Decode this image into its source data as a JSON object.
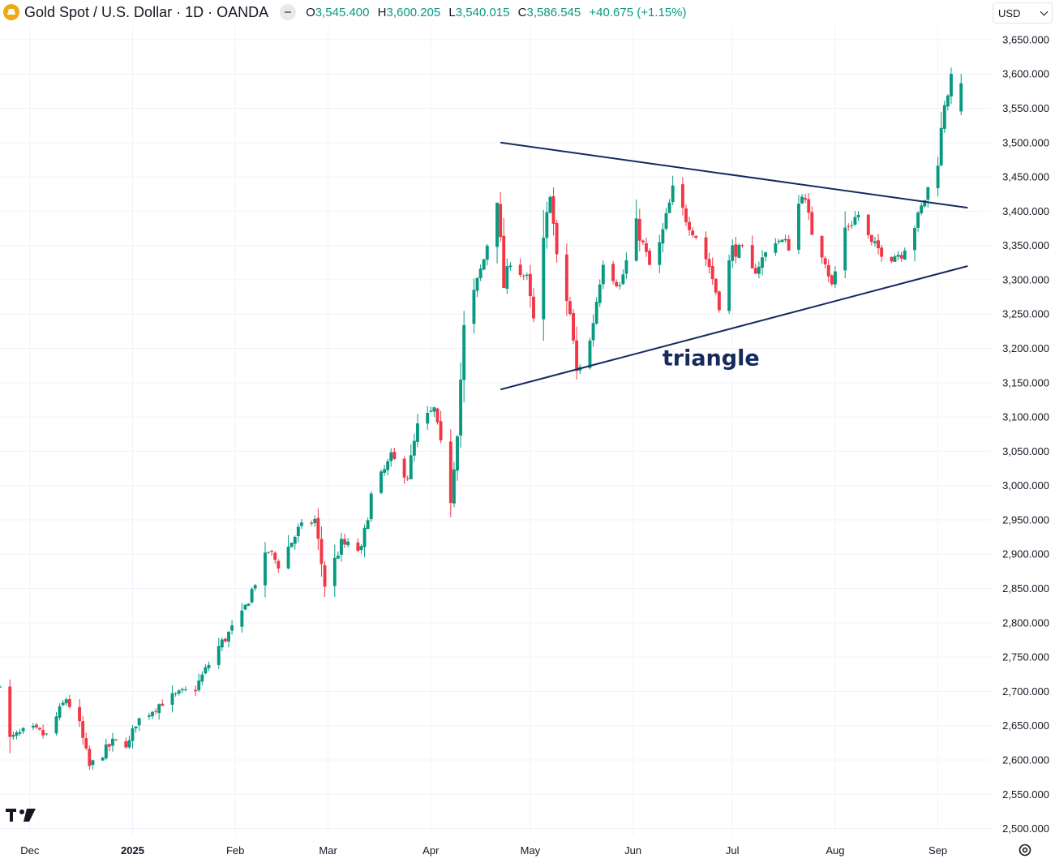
{
  "header": {
    "title": "Gold Spot / U.S. Dollar · 1D · OANDA",
    "ohlc": [
      {
        "key": "O",
        "value": "3,545.400"
      },
      {
        "key": "H",
        "value": "3,600.205"
      },
      {
        "key": "L",
        "value": "3,540.015"
      },
      {
        "key": "C",
        "value": "3,586.545"
      }
    ],
    "change": "+40.675 (+1.15%)"
  },
  "currency_select": {
    "value": "USD"
  },
  "icons": {
    "symbol": "gold-symbol-icon",
    "toggle": "collapse-icon",
    "logo": "tradingview-logo-icon",
    "settings": "gear-icon"
  },
  "colors": {
    "up": "#089981",
    "down": "#f23645",
    "trendline": "#162a60",
    "grid": "#f0f3fa"
  },
  "chart_data": {
    "type": "candlestick",
    "y_axis": {
      "ticks": [
        "3,650.000",
        "3,600.000",
        "3,550.000",
        "3,500.000",
        "3,450.000",
        "3,400.000",
        "3,350.000",
        "3,300.000",
        "3,250.000",
        "3,200.000",
        "3,150.000",
        "3,100.000",
        "3,050.000",
        "3,000.000",
        "2,950.000",
        "2,900.000",
        "2,850.000",
        "2,800.000",
        "2,750.000",
        "2,700.000",
        "2,650.000",
        "2,600.000",
        "2,550.000",
        "2,500.000"
      ],
      "ylim": [
        2490,
        3670
      ]
    },
    "x_axis": {
      "labels": [
        "Dec",
        "2025",
        "Feb",
        "Mar",
        "Apr",
        "May",
        "Jun",
        "Jul",
        "Aug",
        "Sep"
      ],
      "label_dates": [
        "2024-12-01",
        "2025-01-01",
        "2025-02-01",
        "2025-03-01",
        "2025-04-01",
        "2025-05-01",
        "2025-06-01",
        "2025-07-01",
        "2025-08-01",
        "2025-09-01"
      ],
      "range": [
        "2024-11-22",
        "2025-09-17"
      ]
    },
    "series": [
      {
        "anchors": [
          [
            "2024-11-22",
            2715
          ],
          [
            "2024-11-25",
            2630
          ],
          [
            "2024-12-01",
            2645
          ],
          [
            "2024-12-06",
            2635
          ],
          [
            "2024-12-12",
            2690
          ],
          [
            "2024-12-16",
            2650
          ],
          [
            "2024-12-19",
            2590
          ],
          [
            "2024-12-26",
            2625
          ],
          [
            "2024-12-31",
            2625
          ],
          [
            "2025-01-02",
            2655
          ],
          [
            "2025-01-10",
            2685
          ],
          [
            "2025-01-20",
            2705
          ],
          [
            "2025-01-27",
            2765
          ],
          [
            "2025-02-03",
            2810
          ],
          [
            "2025-02-07",
            2860
          ],
          [
            "2025-02-11",
            2905
          ],
          [
            "2025-02-14",
            2885
          ],
          [
            "2025-02-20",
            2935
          ],
          [
            "2025-02-25",
            2950
          ],
          [
            "2025-02-28",
            2855
          ],
          [
            "2025-03-05",
            2915
          ],
          [
            "2025-03-11",
            2905
          ],
          [
            "2025-03-14",
            2985
          ],
          [
            "2025-03-20",
            3040
          ],
          [
            "2025-03-25",
            3015
          ],
          [
            "2025-03-28",
            3085
          ],
          [
            "2025-04-02",
            3110
          ],
          [
            "2025-04-07",
            2980
          ],
          [
            "2025-04-09",
            3080
          ],
          [
            "2025-04-11",
            3230
          ],
          [
            "2025-04-17",
            3330
          ],
          [
            "2025-04-21",
            3420
          ],
          [
            "2025-04-23",
            3290
          ],
          [
            "2025-04-25",
            3330
          ],
          [
            "2025-04-30",
            3300
          ],
          [
            "2025-05-02",
            3240
          ],
          [
            "2025-05-07",
            3430
          ],
          [
            "2025-05-09",
            3330
          ],
          [
            "2025-05-13",
            3250
          ],
          [
            "2025-05-15",
            3165
          ],
          [
            "2025-05-19",
            3210
          ],
          [
            "2025-05-23",
            3330
          ],
          [
            "2025-05-28",
            3290
          ],
          [
            "2025-06-02",
            3380
          ],
          [
            "2025-06-06",
            3320
          ],
          [
            "2025-06-09",
            3350
          ],
          [
            "2025-06-13",
            3430
          ],
          [
            "2025-06-17",
            3390
          ],
          [
            "2025-06-20",
            3365
          ],
          [
            "2025-06-24",
            3320
          ],
          [
            "2025-06-27",
            3265
          ],
          [
            "2025-07-01",
            3345
          ],
          [
            "2025-07-04",
            3340
          ],
          [
            "2025-07-07",
            3310
          ],
          [
            "2025-07-10",
            3330
          ],
          [
            "2025-07-14",
            3360
          ],
          [
            "2025-07-18",
            3350
          ],
          [
            "2025-07-22",
            3430
          ],
          [
            "2025-07-25",
            3370
          ],
          [
            "2025-07-29",
            3330
          ],
          [
            "2025-07-31",
            3290
          ],
          [
            "2025-08-04",
            3375
          ],
          [
            "2025-08-08",
            3395
          ],
          [
            "2025-08-12",
            3350
          ],
          [
            "2025-08-18",
            3335
          ],
          [
            "2025-08-21",
            3340
          ],
          [
            "2025-08-26",
            3390
          ],
          [
            "2025-09-01",
            3475
          ],
          [
            "2025-09-03",
            3560
          ],
          [
            "2025-09-05",
            3590
          ],
          [
            "2025-09-08",
            3586
          ]
        ]
      }
    ],
    "last_candle": {
      "open": 3545.4,
      "high": 3600.205,
      "low": 3540.015,
      "close": 3586.545
    },
    "trendlines": [
      {
        "from": [
          "2025-04-22",
          3500
        ],
        "to": [
          "2025-09-10",
          3405
        ]
      },
      {
        "from": [
          "2025-04-22",
          3140
        ],
        "to": [
          "2025-09-10",
          3320
        ]
      }
    ],
    "annotations": [
      {
        "text": "triangle",
        "at": [
          "2025-06-27",
          3180
        ]
      }
    ]
  }
}
